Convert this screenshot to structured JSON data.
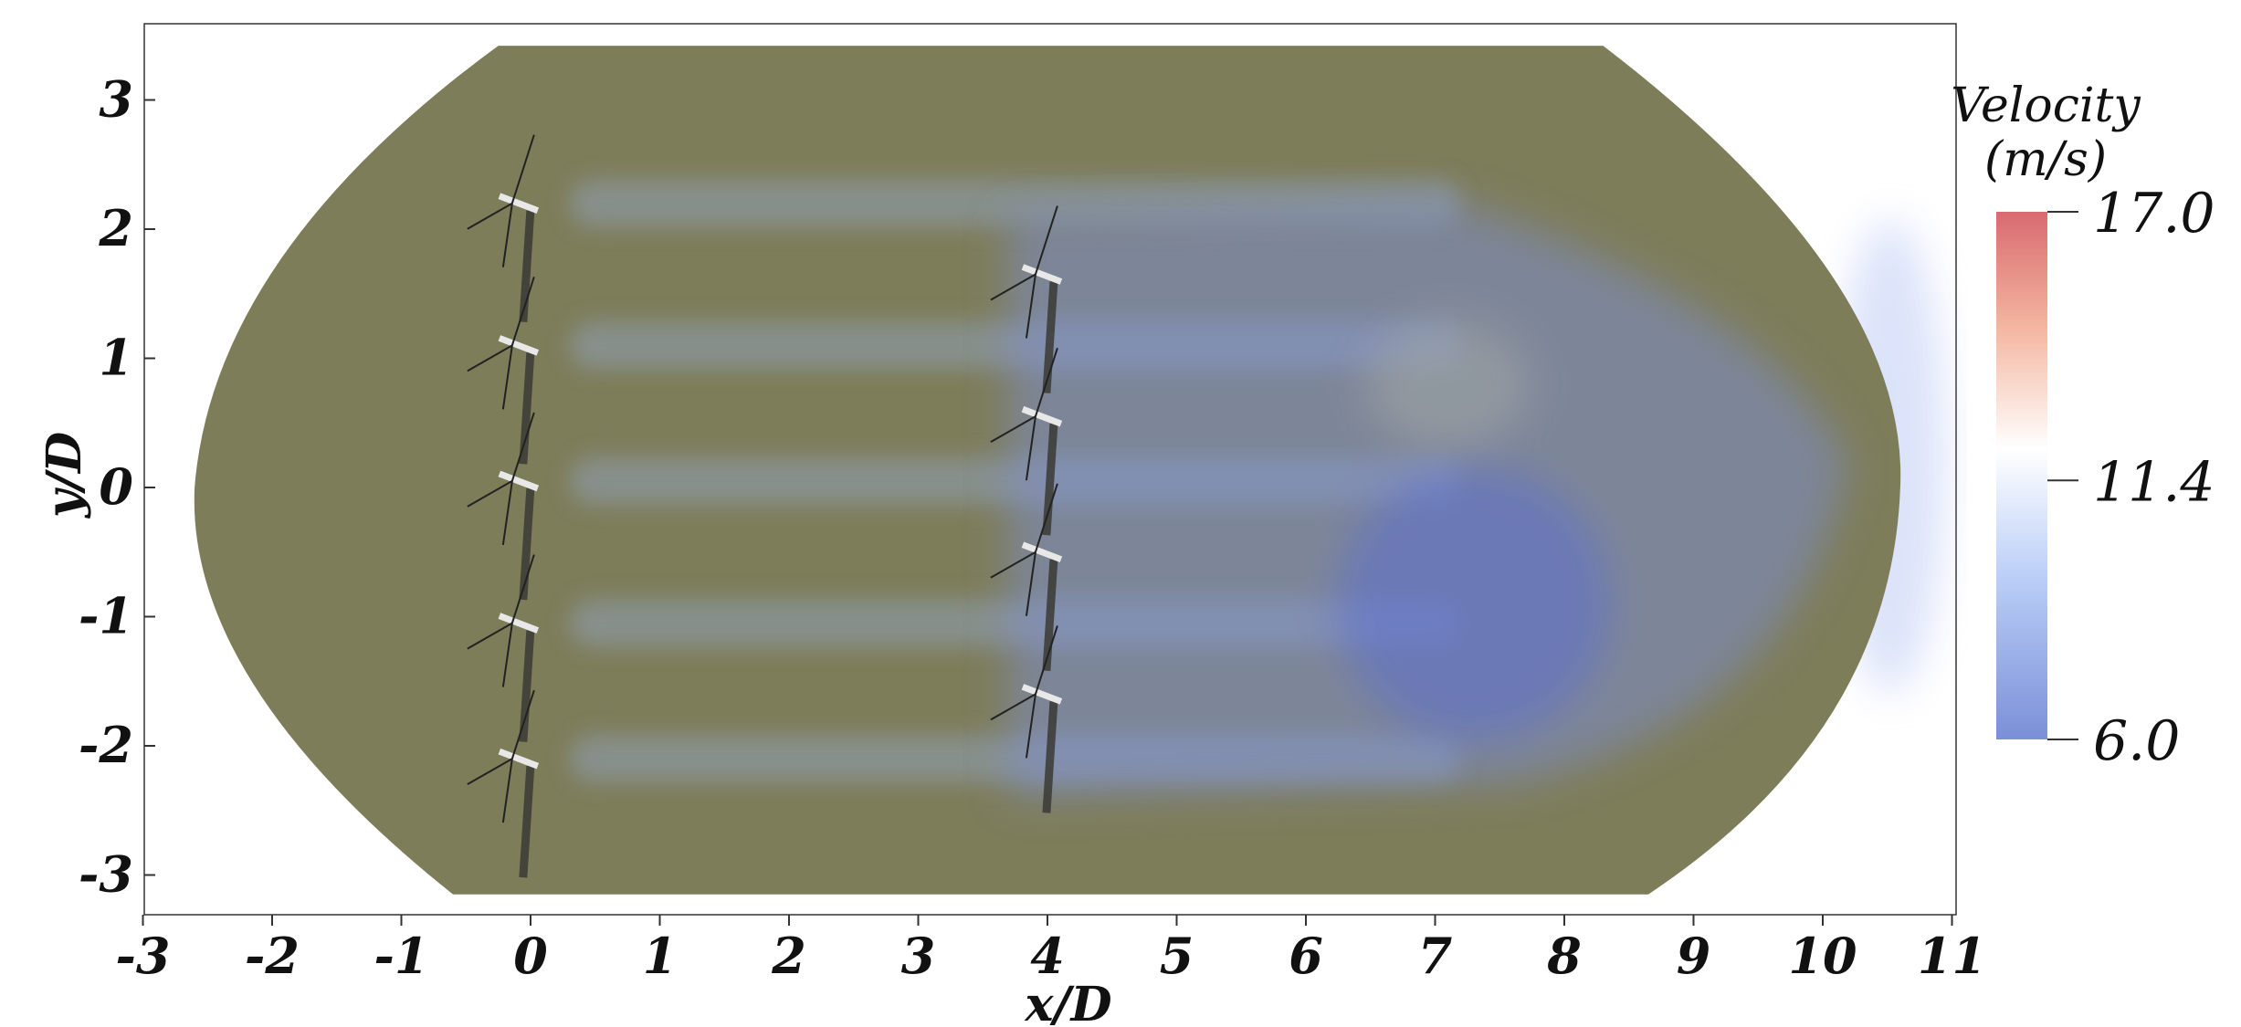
{
  "chart_data": {
    "type": "heatmap",
    "title": "",
    "xlabel": "x/D",
    "ylabel": "y/D",
    "xlim": [
      -3,
      11
    ],
    "ylim": [
      -3.3,
      3.6
    ],
    "x_ticks": [
      -3,
      -2,
      -1,
      0,
      1,
      2,
      3,
      4,
      5,
      6,
      7,
      8,
      9,
      10,
      11
    ],
    "y_ticks": [
      3,
      2,
      1,
      0,
      -1,
      -2,
      -3
    ],
    "x_tick_labels": [
      "-3",
      "-2",
      "-1",
      "0",
      "1",
      "2",
      "3",
      "4",
      "5",
      "6",
      "7",
      "8",
      "9",
      "10",
      "11"
    ],
    "y_tick_labels": [
      "3",
      "2",
      "1",
      "0",
      "-1",
      "-2",
      "-3"
    ],
    "grid": false,
    "colorbar": {
      "title_line1": "Velocity",
      "title_line2": "(m/s)",
      "min": 6.0,
      "mid": 11.4,
      "max": 17.0,
      "tick_labels": [
        "17.0",
        "11.4",
        "6.0"
      ],
      "colormap": [
        "#7b8fd8",
        "#b9cdf7",
        "#ffffff",
        "#f4b6a0",
        "#d86a70"
      ],
      "legend_placement": "right"
    },
    "domain_color": "#7e7d5a",
    "turbine_rows": [
      {
        "x": 0,
        "y": [
          2.2,
          1.1,
          0.05,
          -1.05,
          -2.1
        ]
      },
      {
        "x": 4,
        "y": [
          1.65,
          0.55,
          -0.5,
          -1.6
        ]
      }
    ],
    "wake_color": "#7b8fd8"
  }
}
